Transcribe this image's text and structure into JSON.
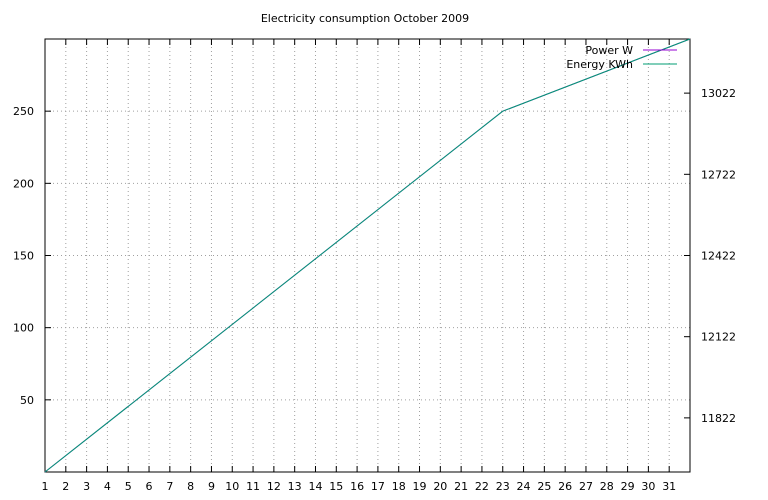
{
  "chart_data": {
    "type": "line",
    "title": "Electricity consumption October 2009",
    "x": {
      "range": [
        1,
        32
      ],
      "tick_labels": [
        "1",
        "2",
        "3",
        "4",
        "5",
        "6",
        "7",
        "8",
        "9",
        "10",
        "11",
        "12",
        "13",
        "14",
        "15",
        "16",
        "17",
        "18",
        "19",
        "20",
        "21",
        "22",
        "23",
        "24",
        "25",
        "26",
        "27",
        "28",
        "29",
        "30",
        "31"
      ]
    },
    "y_left": {
      "range": [
        0,
        300
      ],
      "ticks": [
        50,
        100,
        150,
        200,
        250
      ],
      "tick_labels": [
        "50",
        "100",
        "150",
        "200",
        "250"
      ]
    },
    "y_right": {
      "range": [
        11622,
        13222
      ],
      "ticks": [
        11822,
        12122,
        12422,
        12722,
        13022
      ],
      "tick_labels": [
        "11822",
        "12122",
        "12422",
        "12722",
        "13022"
      ]
    },
    "grid": true,
    "legend_position": "top-right",
    "series": [
      {
        "name": "Power W",
        "color": "#9400d3",
        "axis": "left",
        "x": [
          1,
          23,
          32
        ],
        "values": [
          0,
          250,
          300
        ]
      },
      {
        "name": "Energy KWh",
        "color": "#009e73",
        "axis": "left",
        "x": [
          1,
          23,
          32
        ],
        "values": [
          0,
          250,
          300
        ]
      }
    ]
  }
}
